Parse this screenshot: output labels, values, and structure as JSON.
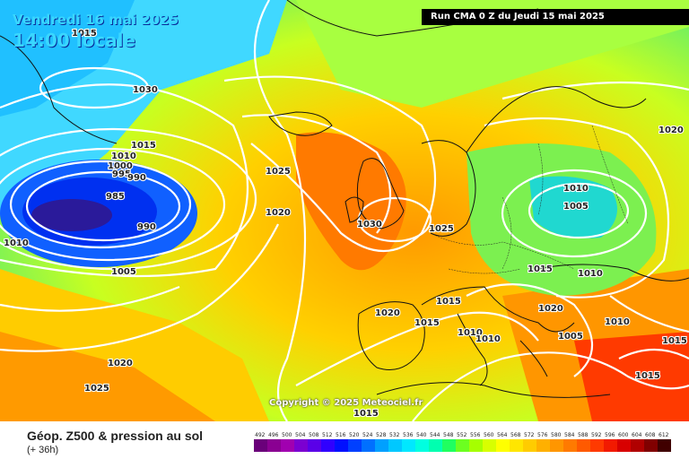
{
  "header": {
    "date": "Vendredi 16 mai 2025",
    "time": "14:00 locale",
    "run": "Run CMA 0 Z du Jeudi 15 mai 2025"
  },
  "map": {
    "copyright": "Copyright © 2025 Meteociel.fr",
    "isobar_labels": [
      "1015",
      "1030",
      "1015",
      "1010",
      "1000",
      "995",
      "990",
      "985",
      "990",
      "1010",
      "1005",
      "1025",
      "1020",
      "1030",
      "1025",
      "1010",
      "1005",
      "1020",
      "1015",
      "1010",
      "1015",
      "1020",
      "1015",
      "1010",
      "1010",
      "1005",
      "1010",
      "1015",
      "1020",
      "1025",
      "1015",
      "1015",
      "1020"
    ]
  },
  "legend": {
    "title": "Géop. Z500 & pression au sol",
    "subtitle": "(+ 36h)",
    "ticks": [
      "492",
      "496",
      "500",
      "504",
      "508",
      "512",
      "516",
      "520",
      "524",
      "528",
      "532",
      "536",
      "540",
      "544",
      "548",
      "552",
      "556",
      "560",
      "564",
      "568",
      "572",
      "576",
      "580",
      "584",
      "588",
      "592",
      "596",
      "600",
      "604",
      "608",
      "612"
    ],
    "colors": [
      "#6a007a",
      "#8a0092",
      "#a100b0",
      "#7b00d1",
      "#5a00e8",
      "#3000ff",
      "#0010ff",
      "#0040ff",
      "#0070ff",
      "#00a0ff",
      "#00c8ff",
      "#00e8ff",
      "#00ffe0",
      "#00ffb0",
      "#20ff60",
      "#6cff20",
      "#a6ff00",
      "#d8ff00",
      "#ffff00",
      "#ffe600",
      "#ffcc00",
      "#ffb000",
      "#ff9600",
      "#ff7a00",
      "#ff5a00",
      "#ff3a00",
      "#f21a00",
      "#d80000",
      "#b00000",
      "#800000",
      "#400000"
    ]
  }
}
